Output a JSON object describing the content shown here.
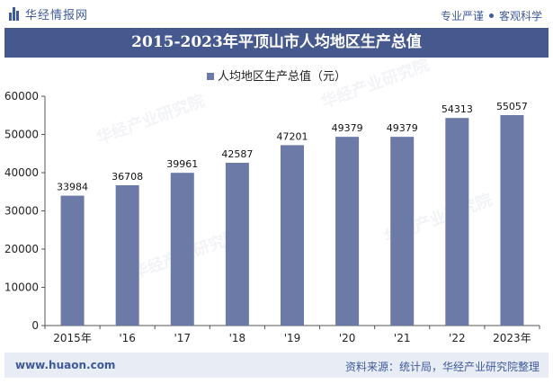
{
  "header": {
    "brand": "华经情报网",
    "slogan_left": "专业严谨",
    "slogan_right": "客观科学"
  },
  "title": "2015-2023年平顶山市人均地区生产总值",
  "footer": {
    "url": "www.huaon.com",
    "source": "资料来源：统计局，华经产业研究院整理"
  },
  "watermark": "华经产业研究院",
  "colors": {
    "bar": "#6b7aa6",
    "title_bg": "#46598f",
    "brand": "#3f5a9a"
  },
  "chart_data": {
    "type": "bar",
    "categories": [
      "2015年",
      "'16",
      "'17",
      "'18",
      "'19",
      "'20",
      "'21",
      "'22",
      "2023年"
    ],
    "series": [
      {
        "name": "人均地区生产总值（元）",
        "values": [
          33984,
          36708,
          39961,
          42587,
          47201,
          49379,
          49379,
          54313,
          55057
        ]
      }
    ],
    "ylim": [
      0,
      60000
    ],
    "yticks": [
      0,
      10000,
      20000,
      30000,
      40000,
      50000,
      60000
    ],
    "legend_position": "top",
    "grid": false,
    "data_labels": true
  }
}
